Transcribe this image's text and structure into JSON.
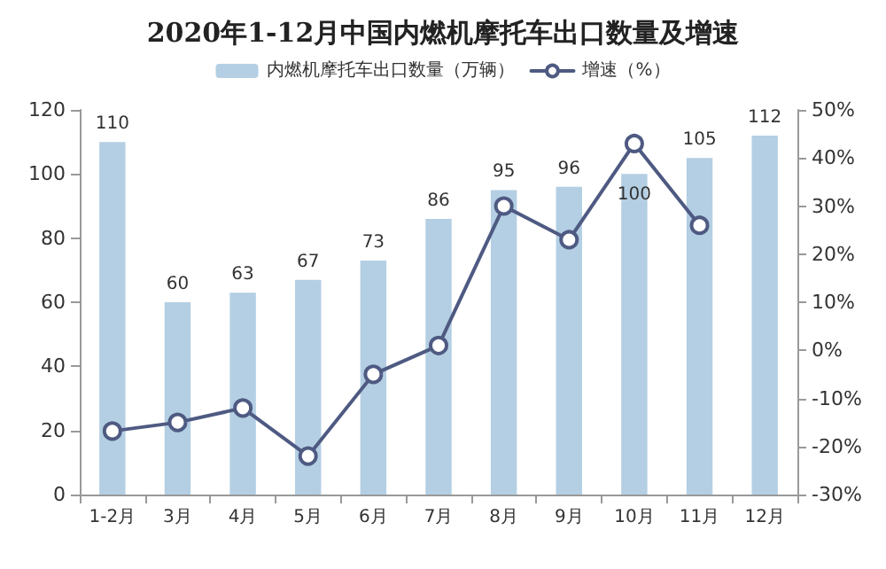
{
  "chart_data": {
    "type": "bar",
    "title": "2020年1-12月中国内燃机摩托车出口数量及增速",
    "categories": [
      "1-2月",
      "3月",
      "4月",
      "5月",
      "6月",
      "7月",
      "8月",
      "9月",
      "10月",
      "11月",
      "12月"
    ],
    "series": [
      {
        "name": "内燃机摩托车出口数量（万辆）",
        "color": "#b4cfe3",
        "values": [
          110,
          60,
          63,
          67,
          73,
          86,
          95,
          96,
          100,
          105,
          112
        ],
        "value_labels": [
          "110",
          "60",
          "63",
          "67",
          "73",
          "86",
          "95",
          "96",
          "100",
          "105",
          "112"
        ]
      },
      {
        "name": "增速（%）",
        "type": "line",
        "axis": "y2",
        "color": "#4e5a82",
        "values": [
          -16.8,
          -15,
          -12,
          -22,
          -5,
          1,
          30,
          23,
          43,
          26,
          null
        ]
      }
    ],
    "ylim": [
      0,
      120
    ],
    "yticks": [
      0,
      20,
      40,
      60,
      80,
      100,
      120
    ],
    "y2lim": [
      -30,
      50
    ],
    "y2ticks": [
      {
        "value": -30,
        "label": "-30%"
      },
      {
        "value": -20,
        "label": "-20%"
      },
      {
        "value": -10,
        "label": "-10%"
      },
      {
        "value": 0,
        "label": "0%"
      },
      {
        "value": 10,
        "label": "10%"
      },
      {
        "value": 20,
        "label": "20%"
      },
      {
        "value": 30,
        "label": "30%"
      },
      {
        "value": 40,
        "label": "40%"
      },
      {
        "value": 50,
        "label": "50%"
      }
    ],
    "legend": "top",
    "grid": false,
    "marker": "circle",
    "line_style": "solid"
  }
}
